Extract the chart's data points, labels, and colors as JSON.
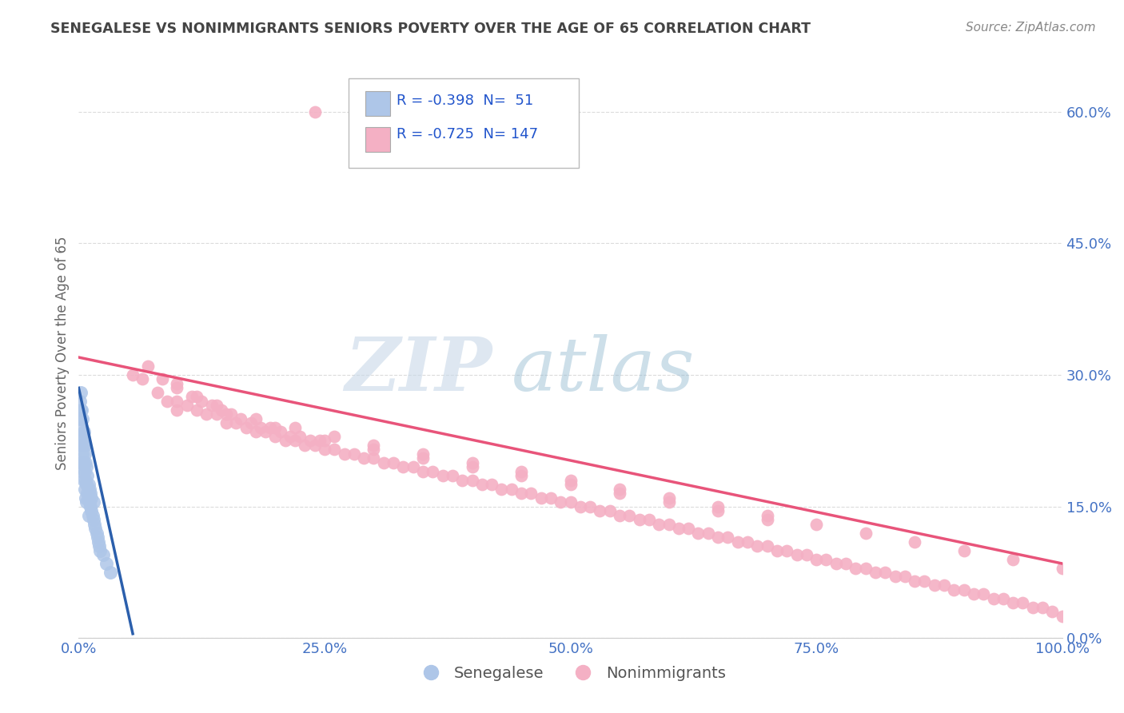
{
  "title": "SENEGALESE VS NONIMMIGRANTS SENIORS POVERTY OVER THE AGE OF 65 CORRELATION CHART",
  "source": "Source: ZipAtlas.com",
  "ylabel": "Seniors Poverty Over the Age of 65",
  "xlim": [
    0,
    1.0
  ],
  "ylim": [
    0,
    0.65
  ],
  "yticks": [
    0.0,
    0.15,
    0.3,
    0.45,
    0.6
  ],
  "ytick_labels": [
    "0.0%",
    "15.0%",
    "30.0%",
    "45.0%",
    "60.0%"
  ],
  "xticks": [
    0.0,
    0.25,
    0.5,
    0.75,
    1.0
  ],
  "xtick_labels": [
    "0.0%",
    "25.0%",
    "50.0%",
    "75.0%",
    "100.0%"
  ],
  "legend_R_senegalese": "-0.398",
  "legend_N_senegalese": "51",
  "legend_R_nonimmigrants": "-0.725",
  "legend_N_nonimmigrants": "147",
  "senegalese_color": "#aec6e8",
  "nonimmigrants_color": "#f4b0c4",
  "senegalese_line_color": "#2b5fac",
  "nonimmigrants_line_color": "#e8547a",
  "legend_label_senegalese": "Senegalese",
  "legend_label_nonimmigrants": "Nonimmigrants",
  "background_color": "#ffffff",
  "grid_color": "#cccccc",
  "watermark_zip": "ZIP",
  "watermark_atlas": "atlas",
  "title_color": "#444444",
  "axis_label_color": "#666666",
  "tick_color": "#4472c4",
  "source_color": "#888888",
  "senegalese_x": [
    0.001,
    0.002,
    0.002,
    0.003,
    0.003,
    0.003,
    0.004,
    0.004,
    0.004,
    0.005,
    0.005,
    0.005,
    0.006,
    0.006,
    0.006,
    0.007,
    0.007,
    0.007,
    0.008,
    0.008,
    0.008,
    0.009,
    0.009,
    0.01,
    0.01,
    0.01,
    0.011,
    0.011,
    0.012,
    0.012,
    0.013,
    0.013,
    0.014,
    0.015,
    0.015,
    0.016,
    0.017,
    0.018,
    0.019,
    0.02,
    0.021,
    0.022,
    0.025,
    0.028,
    0.032,
    0.001,
    0.002,
    0.003,
    0.004,
    0.005,
    0.006
  ],
  "senegalese_y": [
    0.25,
    0.26,
    0.23,
    0.22,
    0.2,
    0.24,
    0.21,
    0.19,
    0.23,
    0.2,
    0.18,
    0.22,
    0.19,
    0.17,
    0.21,
    0.18,
    0.16,
    0.2,
    0.175,
    0.155,
    0.195,
    0.165,
    0.185,
    0.16,
    0.14,
    0.175,
    0.155,
    0.17,
    0.15,
    0.165,
    0.145,
    0.16,
    0.14,
    0.135,
    0.155,
    0.13,
    0.125,
    0.12,
    0.115,
    0.11,
    0.105,
    0.1,
    0.095,
    0.085,
    0.075,
    0.27,
    0.28,
    0.26,
    0.25,
    0.235,
    0.22
  ],
  "nonimmigrants_x": [
    0.055,
    0.065,
    0.07,
    0.08,
    0.085,
    0.09,
    0.1,
    0.1,
    0.11,
    0.115,
    0.12,
    0.125,
    0.13,
    0.135,
    0.14,
    0.145,
    0.15,
    0.155,
    0.16,
    0.165,
    0.17,
    0.175,
    0.18,
    0.185,
    0.19,
    0.195,
    0.2,
    0.205,
    0.21,
    0.215,
    0.22,
    0.225,
    0.23,
    0.235,
    0.24,
    0.245,
    0.25,
    0.26,
    0.27,
    0.28,
    0.29,
    0.3,
    0.31,
    0.32,
    0.33,
    0.34,
    0.35,
    0.36,
    0.37,
    0.38,
    0.39,
    0.4,
    0.41,
    0.42,
    0.43,
    0.44,
    0.45,
    0.46,
    0.47,
    0.48,
    0.49,
    0.5,
    0.51,
    0.52,
    0.53,
    0.54,
    0.55,
    0.56,
    0.57,
    0.58,
    0.59,
    0.6,
    0.61,
    0.62,
    0.63,
    0.64,
    0.65,
    0.66,
    0.67,
    0.68,
    0.69,
    0.7,
    0.71,
    0.72,
    0.73,
    0.74,
    0.75,
    0.76,
    0.77,
    0.78,
    0.79,
    0.8,
    0.81,
    0.82,
    0.83,
    0.84,
    0.85,
    0.86,
    0.87,
    0.88,
    0.89,
    0.9,
    0.91,
    0.92,
    0.93,
    0.94,
    0.95,
    0.96,
    0.97,
    0.98,
    0.99,
    1.0,
    0.24,
    0.1,
    0.15,
    0.2,
    0.25,
    0.3,
    0.35,
    0.4,
    0.45,
    0.5,
    0.55,
    0.6,
    0.65,
    0.7,
    0.1,
    0.12,
    0.14,
    0.18,
    0.22,
    0.26,
    0.3,
    0.35,
    0.4,
    0.45,
    0.5,
    0.55,
    0.6,
    0.65,
    0.7,
    0.75,
    0.8,
    0.85,
    0.9,
    0.95,
    1.0
  ],
  "nonimmigrants_y": [
    0.3,
    0.295,
    0.31,
    0.28,
    0.295,
    0.27,
    0.26,
    0.285,
    0.265,
    0.275,
    0.26,
    0.27,
    0.255,
    0.265,
    0.255,
    0.26,
    0.245,
    0.255,
    0.245,
    0.25,
    0.24,
    0.245,
    0.235,
    0.24,
    0.235,
    0.24,
    0.23,
    0.235,
    0.225,
    0.23,
    0.225,
    0.23,
    0.22,
    0.225,
    0.22,
    0.225,
    0.215,
    0.215,
    0.21,
    0.21,
    0.205,
    0.205,
    0.2,
    0.2,
    0.195,
    0.195,
    0.19,
    0.19,
    0.185,
    0.185,
    0.18,
    0.18,
    0.175,
    0.175,
    0.17,
    0.17,
    0.165,
    0.165,
    0.16,
    0.16,
    0.155,
    0.155,
    0.15,
    0.15,
    0.145,
    0.145,
    0.14,
    0.14,
    0.135,
    0.135,
    0.13,
    0.13,
    0.125,
    0.125,
    0.12,
    0.12,
    0.115,
    0.115,
    0.11,
    0.11,
    0.105,
    0.105,
    0.1,
    0.1,
    0.095,
    0.095,
    0.09,
    0.09,
    0.085,
    0.085,
    0.08,
    0.08,
    0.075,
    0.075,
    0.07,
    0.07,
    0.065,
    0.065,
    0.06,
    0.06,
    0.055,
    0.055,
    0.05,
    0.05,
    0.045,
    0.045,
    0.04,
    0.04,
    0.035,
    0.035,
    0.03,
    0.025,
    0.6,
    0.27,
    0.255,
    0.24,
    0.225,
    0.215,
    0.205,
    0.195,
    0.185,
    0.175,
    0.165,
    0.155,
    0.145,
    0.135,
    0.29,
    0.275,
    0.265,
    0.25,
    0.24,
    0.23,
    0.22,
    0.21,
    0.2,
    0.19,
    0.18,
    0.17,
    0.16,
    0.15,
    0.14,
    0.13,
    0.12,
    0.11,
    0.1,
    0.09,
    0.08
  ],
  "senegalese_trendline_x": [
    0.0,
    0.055
  ],
  "senegalese_trendline_y": [
    0.285,
    0.005
  ],
  "nonimmigrants_trendline_x": [
    0.0,
    1.0
  ],
  "nonimmigrants_trendline_y": [
    0.32,
    0.085
  ]
}
